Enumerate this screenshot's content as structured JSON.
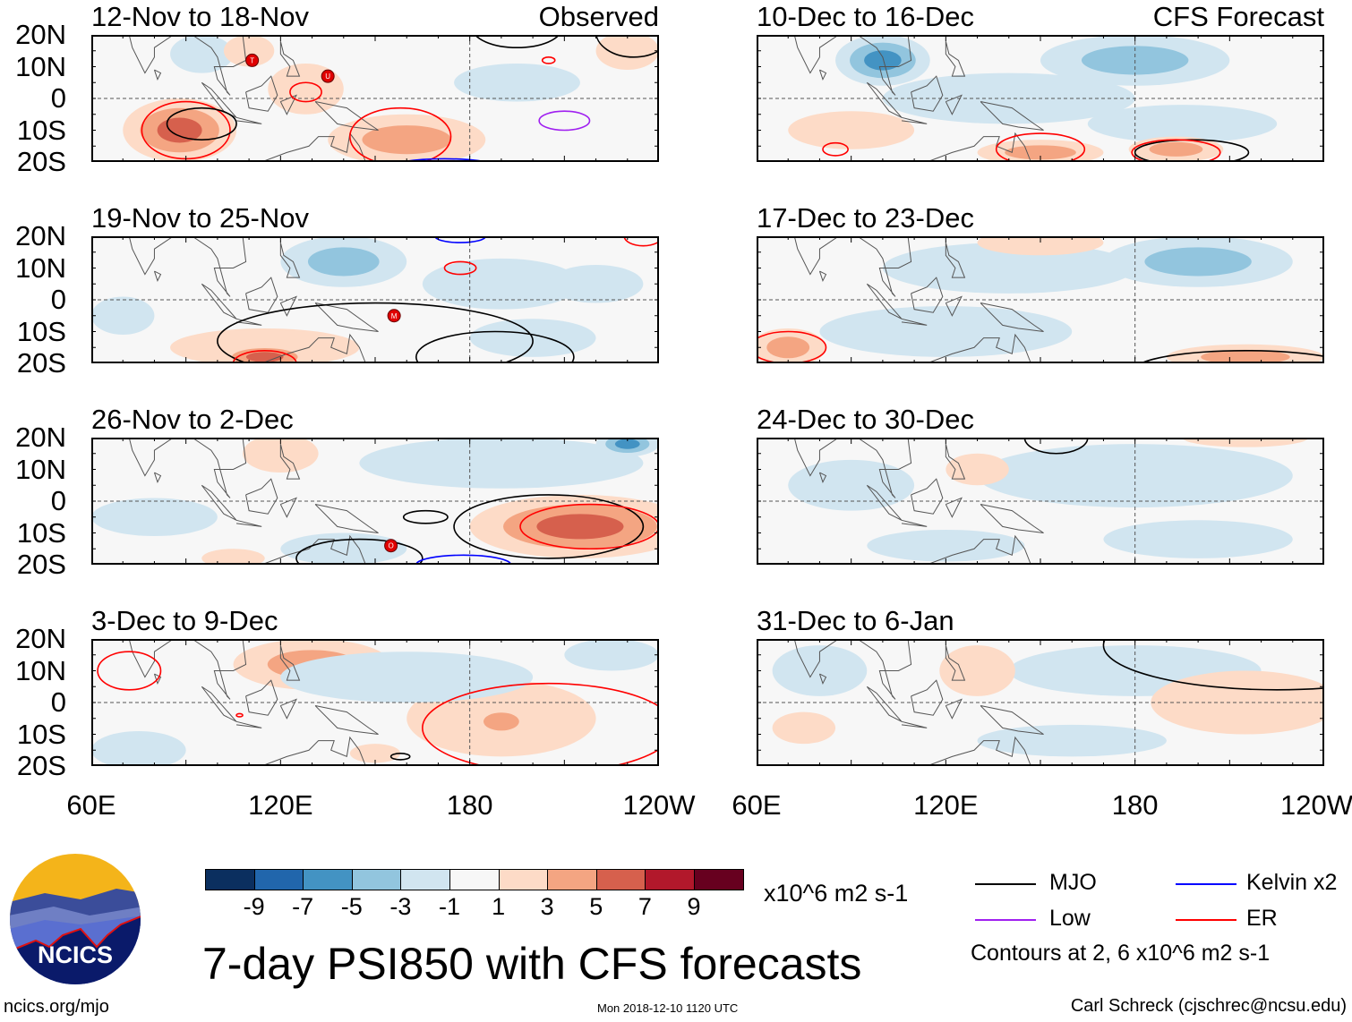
{
  "title": "7-day PSI850 with CFS forecasts",
  "logo_text": "NCICS",
  "url": "ncics.org/mjo",
  "timestamp": "Mon 2018-12-10 1120 UTC",
  "credit": "Carl Schreck (cjschrec@ncsu.edu)",
  "units": "x10^6 m2 s-1",
  "legend": {
    "mjo": "MJO",
    "kelvin": "Kelvin x2",
    "low": "Low",
    "er": "ER",
    "note": "Contours at 2, 6 x10^6 m2 s-1"
  },
  "colors": {
    "MJO": "#000000",
    "Kelvin": "#0000ff",
    "Low": "#a020f0",
    "ER": "#ff0000"
  },
  "colorbar": {
    "labels": [
      "-9",
      "-7",
      "-5",
      "-3",
      "-1",
      "1",
      "3",
      "5",
      "7",
      "9"
    ],
    "colors": [
      "#0b2f5f",
      "#2166ac",
      "#4393c3",
      "#92c5de",
      "#d1e5f0",
      "#f7f7f7",
      "#fddbc7",
      "#f4a582",
      "#d6604d",
      "#b2182b",
      "#67001f"
    ]
  },
  "chart_data": {
    "type": "heatmap",
    "variable": "PSI850 anomaly",
    "xticks": [
      "60E",
      "120E",
      "180",
      "120W"
    ],
    "yticks": [
      "20N",
      "10N",
      "0",
      "10S",
      "20S"
    ],
    "lon_range": [
      60,
      240
    ],
    "lat_range": [
      -20,
      20
    ],
    "column_labels": [
      "Observed",
      "CFS Forecast"
    ],
    "panels": [
      {
        "title": "12-Nov to 18-Nov",
        "label": "Observed",
        "features": [
          [
            88,
            -10,
            18,
            10,
            7
          ],
          [
            160,
            -13,
            25,
            8,
            5
          ],
          [
            128,
            3,
            12,
            8,
            3
          ],
          [
            95,
            14,
            10,
            6,
            -2
          ],
          [
            195,
            5,
            20,
            6,
            -2
          ],
          [
            230,
            15,
            10,
            6,
            2
          ],
          [
            110,
            15,
            8,
            5,
            2
          ]
        ],
        "contours": [
          [
            90,
            -10,
            14,
            9,
            "ER"
          ],
          [
            95,
            -8,
            11,
            5,
            "MJO"
          ],
          [
            158,
            -12,
            16,
            9,
            "ER"
          ],
          [
            210,
            -7,
            8,
            3,
            "Low"
          ],
          [
            195,
            22,
            14,
            6,
            "MJO"
          ],
          [
            232,
            21,
            12,
            8,
            "MJO"
          ],
          [
            128,
            2,
            5,
            3,
            "ER"
          ],
          [
            172,
            -22,
            18,
            3,
            "Kelvin"
          ],
          [
            205,
            12,
            2,
            1,
            "ER"
          ],
          [
            116,
            21,
            2,
            1,
            "Low"
          ]
        ],
        "storms": [
          [
            111,
            12,
            "T"
          ],
          [
            135,
            7,
            "U"
          ]
        ]
      },
      {
        "title": "19-Nov to 25-Nov",
        "features": [
          [
            140,
            12,
            20,
            8,
            -4
          ],
          [
            190,
            5,
            25,
            8,
            -2
          ],
          [
            115,
            -15,
            30,
            6,
            3
          ],
          [
            115,
            -18,
            15,
            4,
            6
          ],
          [
            70,
            -5,
            10,
            6,
            -2
          ],
          [
            200,
            -12,
            20,
            6,
            -2
          ],
          [
            220,
            5,
            15,
            6,
            -2
          ]
        ],
        "contours": [
          [
            150,
            -13,
            50,
            12,
            "MJO"
          ],
          [
            188,
            -18,
            25,
            8,
            "MJO"
          ],
          [
            115,
            -20,
            10,
            4,
            "ER"
          ],
          [
            177,
            20,
            8,
            2,
            "Kelvin"
          ],
          [
            177,
            10,
            5,
            2,
            "ER"
          ],
          [
            235,
            20,
            6,
            3,
            "ER"
          ]
        ],
        "storms": [
          [
            156,
            -5,
            "M"
          ]
        ]
      },
      {
        "title": "26-Nov to 2-Dec",
        "features": [
          [
            215,
            -8,
            35,
            10,
            7
          ],
          [
            190,
            12,
            45,
            8,
            -3
          ],
          [
            230,
            18,
            10,
            4,
            -6
          ],
          [
            80,
            -5,
            20,
            6,
            -3
          ],
          [
            120,
            15,
            12,
            6,
            2
          ],
          [
            140,
            -15,
            20,
            5,
            -2
          ],
          [
            105,
            -18,
            10,
            3,
            3
          ]
        ],
        "contours": [
          [
            205,
            -8,
            30,
            10,
            "MJO"
          ],
          [
            218,
            -8,
            22,
            7,
            "ER"
          ],
          [
            166,
            -5,
            7,
            2,
            "MJO"
          ],
          [
            145,
            -18,
            20,
            6,
            "MJO"
          ],
          [
            178,
            -20,
            15,
            3,
            "Kelvin"
          ]
        ],
        "storms": [
          [
            155,
            -14,
            "O"
          ]
        ]
      },
      {
        "title": "3-Dec to 9-Dec",
        "features": [
          [
            130,
            12,
            25,
            8,
            5
          ],
          [
            190,
            -5,
            30,
            12,
            3
          ],
          [
            190,
            -6,
            10,
            5,
            5
          ],
          [
            75,
            -15,
            15,
            6,
            -3
          ],
          [
            160,
            8,
            40,
            8,
            -2
          ],
          [
            225,
            15,
            15,
            5,
            -2
          ],
          [
            150,
            -16,
            8,
            3,
            3
          ]
        ],
        "contours": [
          [
            72,
            10,
            10,
            6,
            "ER"
          ],
          [
            205,
            -8,
            40,
            14,
            "ER"
          ],
          [
            158,
            -17,
            3,
            1,
            "MJO"
          ],
          [
            107,
            -4,
            1,
            0.5,
            "ER"
          ]
        ],
        "storms": []
      },
      {
        "title": "10-Dec to 16-Dec",
        "label": "CFS Forecast",
        "features": [
          [
            100,
            12,
            15,
            8,
            -6
          ],
          [
            180,
            12,
            30,
            8,
            -5
          ],
          [
            140,
            0,
            40,
            8,
            -2
          ],
          [
            195,
            -8,
            30,
            6,
            -2
          ],
          [
            150,
            -17,
            20,
            4,
            4
          ],
          [
            193,
            -16,
            15,
            4,
            4
          ],
          [
            90,
            -10,
            20,
            6,
            2
          ]
        ],
        "contours": [
          [
            150,
            -16,
            14,
            5,
            "ER"
          ],
          [
            198,
            -17,
            18,
            4,
            "MJO"
          ],
          [
            193,
            -17,
            14,
            4,
            "ER"
          ],
          [
            85,
            -16,
            4,
            2,
            "ER"
          ]
        ],
        "storms": []
      },
      {
        "title": "17-Dec to 23-Dec",
        "features": [
          [
            200,
            12,
            30,
            8,
            -5
          ],
          [
            140,
            10,
            40,
            8,
            -2
          ],
          [
            120,
            -10,
            40,
            8,
            -2
          ],
          [
            70,
            -15,
            12,
            6,
            5
          ],
          [
            215,
            -18,
            25,
            4,
            4
          ],
          [
            150,
            18,
            20,
            4,
            2
          ]
        ],
        "contours": [
          [
            70,
            -15,
            12,
            5,
            "ER"
          ],
          [
            215,
            -22,
            35,
            6,
            "MJO"
          ]
        ],
        "storms": []
      },
      {
        "title": "24-Dec to 30-Dec",
        "features": [
          [
            180,
            8,
            50,
            10,
            -2
          ],
          [
            90,
            5,
            20,
            8,
            -2
          ],
          [
            120,
            -14,
            25,
            5,
            -3
          ],
          [
            200,
            -12,
            30,
            6,
            -2
          ],
          [
            130,
            10,
            10,
            5,
            2
          ],
          [
            215,
            20,
            20,
            3,
            2
          ]
        ],
        "contours": [
          [
            155,
            20,
            10,
            5,
            "MJO"
          ],
          [
            240,
            -22,
            5,
            2,
            "MJO"
          ]
        ],
        "storms": []
      },
      {
        "title": "31-Dec to 6-Jan",
        "features": [
          [
            80,
            10,
            15,
            8,
            -3
          ],
          [
            180,
            10,
            40,
            8,
            -2
          ],
          [
            130,
            10,
            12,
            8,
            2
          ],
          [
            215,
            0,
            30,
            10,
            2
          ],
          [
            75,
            -8,
            10,
            5,
            3
          ],
          [
            160,
            -12,
            30,
            5,
            -2
          ]
        ],
        "contours": [
          [
            225,
            18,
            55,
            14,
            "MJO"
          ]
        ],
        "storms": []
      }
    ]
  }
}
